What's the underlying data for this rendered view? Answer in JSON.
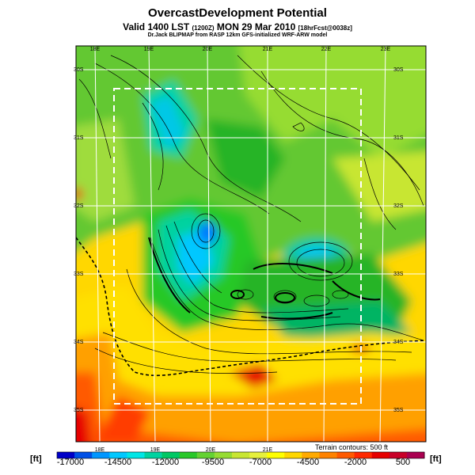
{
  "title": "OvercastDevelopment Potential",
  "subtitle": {
    "prefix": "Valid 1400 LST",
    "utc": "(1200Z)",
    "date": "MON 29 Mar 2010",
    "forecast": "[18hrFcst@0038z]"
  },
  "credit": "Dr.Jack BLIPMAP from RASP 12km GFS-initialized WRF-ARW model",
  "units_left": "[ft]",
  "units_right": "[ft]",
  "terrain_note": "Terrain contours: 500 ft",
  "lon_top": [
    "18E",
    "19E",
    "20E",
    "21E",
    "22E",
    "23E"
  ],
  "lon_bottom": [
    "18E",
    "19E",
    "20E",
    "21E"
  ],
  "lat_left": [
    "30S",
    "31S",
    "32S",
    "33S",
    "34S",
    "35S"
  ],
  "lat_right": [
    "30S",
    "31S",
    "32S",
    "33S",
    "34S",
    "35S"
  ],
  "colorbar": {
    "labels": [
      "-17000",
      "-14500",
      "-12000",
      "-9500",
      "-7000",
      "-4500",
      "-2000",
      "500"
    ],
    "colors": [
      "#0000c8",
      "#0050e6",
      "#0096ff",
      "#00c8ff",
      "#00e6e6",
      "#00d2a0",
      "#00c864",
      "#28c828",
      "#64d232",
      "#96dc32",
      "#c8e632",
      "#e6f03c",
      "#ffff00",
      "#ffd700",
      "#ffaa00",
      "#ff8200",
      "#ff5a00",
      "#ff2800",
      "#e60000",
      "#c80028",
      "#aa0050"
    ]
  }
}
